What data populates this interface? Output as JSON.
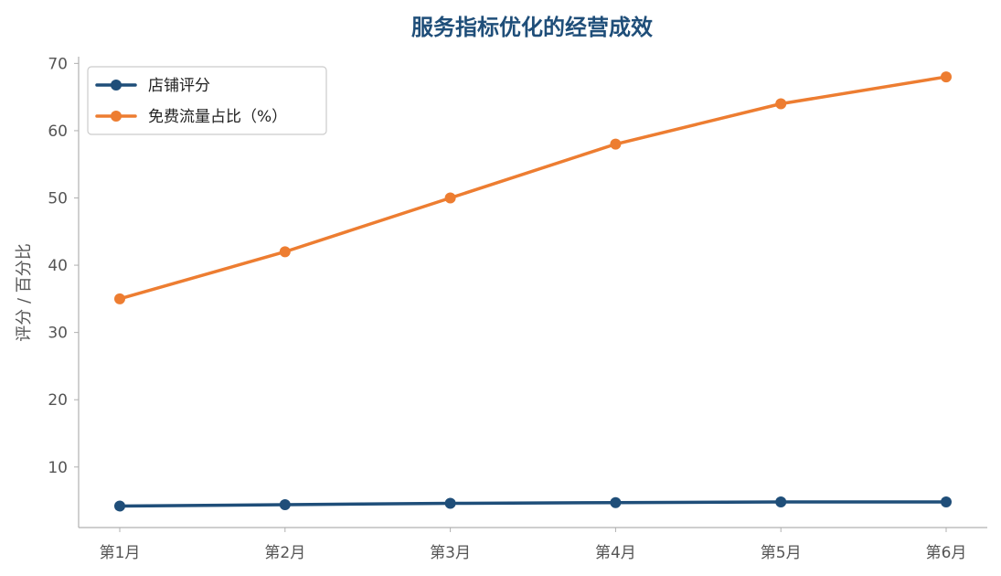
{
  "chart_data": {
    "type": "line",
    "title": "服务指标优化的经营成效",
    "title_color": "#1f4e79",
    "xlabel": "",
    "ylabel": "评分 / 百分比",
    "categories": [
      "第1月",
      "第2月",
      "第3月",
      "第4月",
      "第5月",
      "第6月"
    ],
    "ylim": [
      1,
      71
    ],
    "yticks": [
      10,
      20,
      30,
      40,
      50,
      60,
      70
    ],
    "grid": false,
    "legend_position": "top-left",
    "series": [
      {
        "name": "店铺评分",
        "values": [
          4.2,
          4.4,
          4.6,
          4.7,
          4.8,
          4.8
        ],
        "color": "#1f4e79",
        "marker": "circle"
      },
      {
        "name": "免费流量占比（%）",
        "values": [
          35,
          42,
          50,
          58,
          64,
          68
        ],
        "color": "#ed7d31",
        "marker": "circle"
      }
    ]
  }
}
